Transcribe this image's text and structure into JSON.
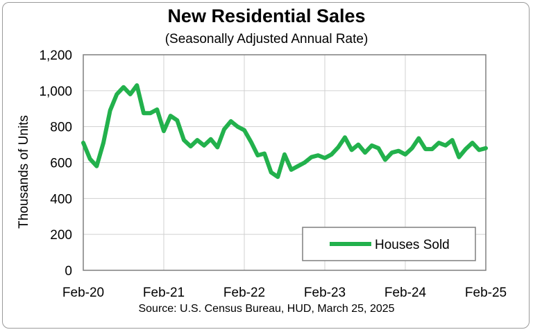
{
  "chart_data": {
    "type": "line",
    "title": "New Residential Sales",
    "subtitle": "(Seasonally Adjusted Annual Rate)",
    "ylabel": "Thousands of Units",
    "xlabel": "",
    "source": "Source:  U.S. Census Bureau, HUD, March 25, 2025",
    "ylim": [
      0,
      1200
    ],
    "yticks": [
      0,
      200,
      400,
      600,
      800,
      1000,
      1200
    ],
    "ytick_labels": [
      "0",
      "200",
      "400",
      "600",
      "800",
      "1,000",
      "1,200"
    ],
    "xlim": [
      0,
      60
    ],
    "xticks": [
      0,
      12,
      24,
      36,
      48,
      60
    ],
    "xtick_labels": [
      "Feb-20",
      "Feb-21",
      "Feb-22",
      "Feb-23",
      "Feb-24",
      "Feb-25"
    ],
    "grid": true,
    "legend_position": "bottom-right",
    "series": [
      {
        "name": "Houses Sold",
        "color": "#22b14c",
        "values": [
          710,
          620,
          580,
          710,
          890,
          980,
          1020,
          980,
          1030,
          875,
          875,
          895,
          775,
          860,
          835,
          725,
          690,
          725,
          695,
          730,
          685,
          785,
          830,
          800,
          780,
          715,
          640,
          650,
          545,
          520,
          645,
          560,
          580,
          600,
          630,
          640,
          625,
          645,
          685,
          740,
          670,
          700,
          655,
          695,
          680,
          615,
          655,
          665,
          645,
          680,
          735,
          675,
          675,
          710,
          695,
          725,
          630,
          675,
          710,
          670,
          680
        ]
      }
    ]
  }
}
